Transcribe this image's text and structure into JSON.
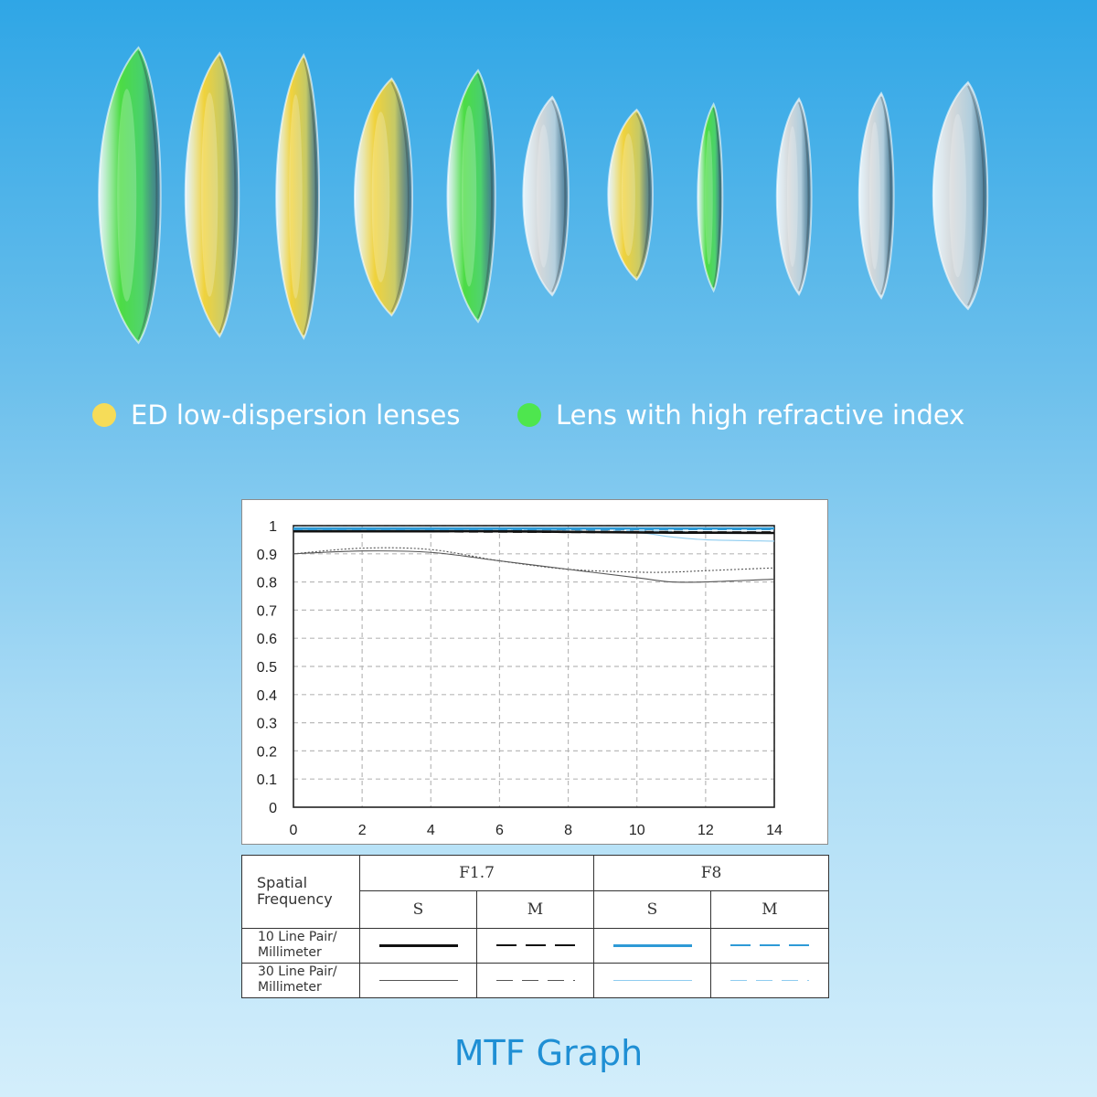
{
  "lens_colors": {
    "ed": "#f0d23c",
    "high_refractive": "#4cdc44",
    "clear": "#d4d8da"
  },
  "lens_elements": [
    "high_refractive",
    "ed",
    "ed",
    "ed",
    "high_refractive",
    "clear",
    "ed",
    "high_refractive",
    "clear",
    "clear",
    "clear"
  ],
  "legend": [
    {
      "label": "ED low-dispersion lenses",
      "color": "#f6dc58"
    },
    {
      "label": "Lens with high refractive index",
      "color": "#4ee64e"
    }
  ],
  "chart_data": {
    "type": "line",
    "title": "MTF Graph",
    "xlabel": "",
    "ylabel": "",
    "xlim": [
      0,
      14
    ],
    "ylim": [
      0,
      1
    ],
    "x_ticks": [
      0,
      2,
      4,
      6,
      8,
      10,
      12,
      14
    ],
    "y_ticks": [
      0,
      0.1,
      0.2,
      0.3,
      0.4,
      0.5,
      0.6,
      0.7,
      0.8,
      0.9,
      1
    ],
    "y_tick_labels": [
      "0",
      "0.1",
      "0.2",
      "0.3",
      "0.4",
      "0.5",
      "0.6",
      "0.7",
      "0.8",
      "0.9",
      "1"
    ],
    "grid": true,
    "x": [
      0,
      2,
      4,
      6,
      8,
      10,
      11,
      12,
      14
    ],
    "series": [
      {
        "aperture": "F1.7",
        "type": "S",
        "frequency": "10",
        "color": "#111111",
        "style": "solid",
        "weight": "heavy",
        "values": [
          0.98,
          0.98,
          0.98,
          0.98,
          0.978,
          0.976,
          0.975,
          0.975,
          0.974
        ]
      },
      {
        "aperture": "F1.7",
        "type": "M",
        "frequency": "10",
        "color": "#111111",
        "style": "dashed",
        "weight": "heavy",
        "values": [
          0.98,
          0.98,
          0.98,
          0.979,
          0.978,
          0.977,
          0.977,
          0.976,
          0.976
        ]
      },
      {
        "aperture": "F8",
        "type": "S",
        "frequency": "10",
        "color": "#2e9ad6",
        "style": "solid",
        "weight": "heavy",
        "values": [
          0.99,
          0.99,
          0.99,
          0.99,
          0.99,
          0.99,
          0.99,
          0.99,
          0.99
        ]
      },
      {
        "aperture": "F8",
        "type": "M",
        "frequency": "10",
        "color": "#2e9ad6",
        "style": "dashed",
        "weight": "heavy",
        "values": [
          0.988,
          0.988,
          0.988,
          0.988,
          0.988,
          0.988,
          0.988,
          0.988,
          0.988
        ]
      },
      {
        "aperture": "F1.7",
        "type": "S",
        "frequency": "30",
        "color": "#555555",
        "style": "solid",
        "weight": "thin",
        "values": [
          0.9,
          0.91,
          0.905,
          0.875,
          0.845,
          0.815,
          0.8,
          0.8,
          0.81
        ]
      },
      {
        "aperture": "F1.7",
        "type": "M",
        "frequency": "30",
        "color": "#555555",
        "style": "dotted",
        "weight": "thin",
        "values": [
          0.9,
          0.92,
          0.915,
          0.875,
          0.845,
          0.835,
          0.835,
          0.84,
          0.85
        ]
      },
      {
        "aperture": "F8",
        "type": "S",
        "frequency": "30",
        "color": "#8fcdf0",
        "style": "solid",
        "weight": "thin",
        "values": [
          0.985,
          0.985,
          0.985,
          0.983,
          0.98,
          0.975,
          0.96,
          0.95,
          0.945
        ]
      },
      {
        "aperture": "F8",
        "type": "M",
        "frequency": "30",
        "color": "#8fcdf0",
        "style": "dashed",
        "weight": "thin",
        "values": [
          0.985,
          0.985,
          0.985,
          0.985,
          0.984,
          0.982,
          0.98,
          0.978,
          0.975
        ]
      }
    ]
  },
  "key_table": {
    "row_header": "Spatial Frequency",
    "apertures": [
      "F1.7",
      "F8"
    ],
    "types": [
      "S",
      "M",
      "S",
      "M"
    ],
    "rows": [
      "10 Line Pair/ Millimeter",
      "30 Line Pair/ Millimeter"
    ]
  },
  "footer_title": "MTF Graph"
}
